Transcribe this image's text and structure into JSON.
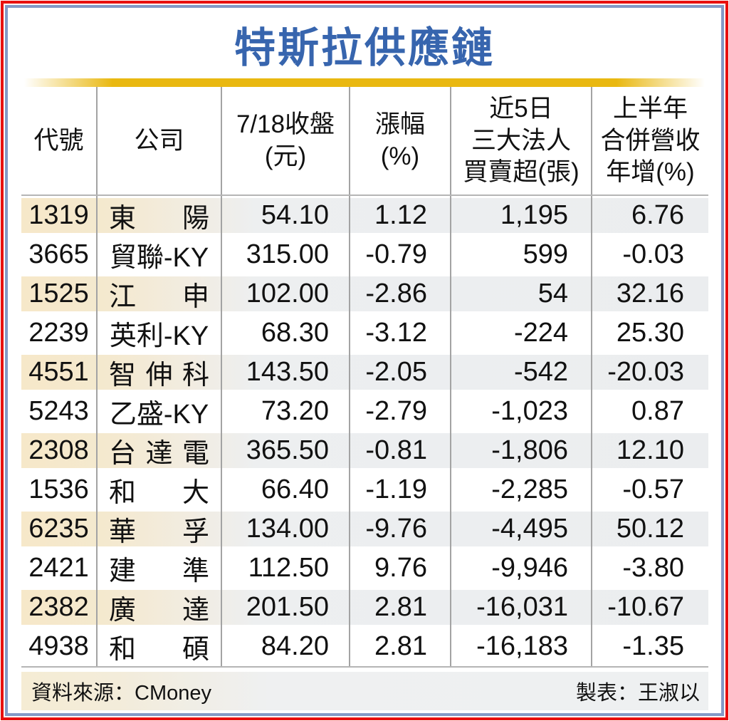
{
  "title": "特斯拉供應鏈",
  "colors": {
    "title_blue": "#3765ae",
    "frame_red": "#e8100f",
    "frame_blue": "#8399c6",
    "gold_bar": "#e9b811",
    "stripe_beige": "#f6e8c9",
    "stripe_gray": "#ebedef",
    "divider_gray": "#a3a3a3"
  },
  "header": {
    "code": "代號",
    "company": "公司",
    "close": "7/18收盤\n(元)",
    "change": "漲幅\n(%)",
    "net": "近5日\n三大法人\n買賣超(張)",
    "revenue": "上半年\n合併營收\n年增(%)"
  },
  "rows": [
    {
      "code": "1319",
      "name": "東陽",
      "close": "54.10",
      "change": "1.12",
      "net": "1,195",
      "rev": "6.76"
    },
    {
      "code": "3665",
      "name": "貿聯-KY",
      "close": "315.00",
      "change": "-0.79",
      "net": "599",
      "rev": "-0.03"
    },
    {
      "code": "1525",
      "name": "江申",
      "close": "102.00",
      "change": "-2.86",
      "net": "54",
      "rev": "32.16"
    },
    {
      "code": "2239",
      "name": "英利-KY",
      "close": "68.30",
      "change": "-3.12",
      "net": "-224",
      "rev": "25.30"
    },
    {
      "code": "4551",
      "name": "智伸科",
      "close": "143.50",
      "change": "-2.05",
      "net": "-542",
      "rev": "-20.03"
    },
    {
      "code": "5243",
      "name": "乙盛-KY",
      "close": "73.20",
      "change": "-2.79",
      "net": "-1,023",
      "rev": "0.87"
    },
    {
      "code": "2308",
      "name": "台達電",
      "close": "365.50",
      "change": "-0.81",
      "net": "-1,806",
      "rev": "12.10"
    },
    {
      "code": "1536",
      "name": "和大",
      "close": "66.40",
      "change": "-1.19",
      "net": "-2,285",
      "rev": "-0.57"
    },
    {
      "code": "6235",
      "name": "華孚",
      "close": "134.00",
      "change": "-9.76",
      "net": "-4,495",
      "rev": "50.12"
    },
    {
      "code": "2421",
      "name": "建準",
      "close": "112.50",
      "change": "9.76",
      "net": "-9,946",
      "rev": "-3.80"
    },
    {
      "code": "2382",
      "name": "廣達",
      "close": "201.50",
      "change": "2.81",
      "net": "-16,031",
      "rev": "-10.67"
    },
    {
      "code": "4938",
      "name": "和碩",
      "close": "84.20",
      "change": "2.81",
      "net": "-16,183",
      "rev": "-1.35"
    }
  ],
  "footer": {
    "source": "資料來源：CMoney",
    "credit": "製表：王淑以"
  },
  "chart_data": {
    "type": "table",
    "title": "特斯拉供應鏈",
    "columns": [
      "代號",
      "公司",
      "7/18收盤(元)",
      "漲幅(%)",
      "近5日三大法人買賣超(張)",
      "上半年合併營收年增(%)"
    ],
    "rows": [
      [
        "1319",
        "東陽",
        54.1,
        1.12,
        1195,
        6.76
      ],
      [
        "3665",
        "貿聯-KY",
        315.0,
        -0.79,
        599,
        -0.03
      ],
      [
        "1525",
        "江申",
        102.0,
        -2.86,
        54,
        32.16
      ],
      [
        "2239",
        "英利-KY",
        68.3,
        -3.12,
        -224,
        25.3
      ],
      [
        "4551",
        "智伸科",
        143.5,
        -2.05,
        -542,
        -20.03
      ],
      [
        "5243",
        "乙盛-KY",
        73.2,
        -2.79,
        -1023,
        0.87
      ],
      [
        "2308",
        "台達電",
        365.5,
        -0.81,
        -1806,
        12.1
      ],
      [
        "1536",
        "和大",
        66.4,
        -1.19,
        -2285,
        -0.57
      ],
      [
        "6235",
        "華孚",
        134.0,
        -9.76,
        -4495,
        50.12
      ],
      [
        "2421",
        "建準",
        112.5,
        9.76,
        -9946,
        -3.8
      ],
      [
        "2382",
        "廣達",
        201.5,
        2.81,
        -16031,
        -10.67
      ],
      [
        "4938",
        "和碩",
        84.2,
        2.81,
        -16183,
        -1.35
      ]
    ],
    "source": "CMoney",
    "credit": "王淑以"
  }
}
